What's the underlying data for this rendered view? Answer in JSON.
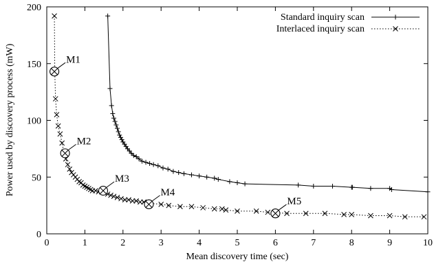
{
  "chart_data": {
    "type": "line",
    "title": "",
    "xlabel": "Mean discovery time (sec)",
    "ylabel": "Power used by discovery process (mW)",
    "xlim": [
      0,
      10
    ],
    "ylim": [
      0,
      200
    ],
    "xticks": [
      0,
      1,
      2,
      3,
      4,
      5,
      6,
      7,
      8,
      9,
      10
    ],
    "yticks": [
      0,
      50,
      100,
      150,
      200
    ],
    "legend_position": "top-right",
    "grid": false,
    "series": [
      {
        "name": "Standard inquiry scan",
        "line_style": "solid",
        "marker": "plus",
        "x": [
          1.6,
          1.66,
          1.7,
          1.73,
          1.76,
          1.79,
          1.82,
          1.85,
          1.88,
          1.91,
          1.94,
          1.97,
          2.0,
          2.04,
          2.08,
          2.12,
          2.17,
          2.22,
          2.28,
          2.35,
          2.42,
          2.5,
          2.6,
          2.7,
          2.8,
          2.92,
          3.05,
          3.18,
          3.32,
          3.46,
          3.6,
          3.8,
          4.0,
          4.2,
          4.4,
          4.5,
          4.8,
          5.0,
          5.2,
          6.6,
          7.0,
          7.5,
          8.0,
          8.02,
          8.5,
          9.0,
          9.05,
          10.0
        ],
        "y": [
          192,
          128,
          113,
          106,
          102,
          99,
          96,
          93,
          90,
          87,
          85,
          83,
          81,
          79,
          77,
          75,
          73,
          71,
          69,
          68,
          66,
          64,
          63,
          62,
          61,
          60,
          58,
          57,
          55,
          54,
          53,
          52,
          51,
          50,
          49,
          48,
          46,
          45,
          44,
          43,
          42,
          42,
          41,
          41,
          40,
          40,
          39,
          37
        ]
      },
      {
        "name": "Interlaced inquiry scan",
        "line_style": "dotted",
        "marker": "x",
        "x": [
          0.2,
          0.21,
          0.23,
          0.26,
          0.3,
          0.35,
          0.4,
          0.45,
          0.5,
          0.55,
          0.6,
          0.65,
          0.7,
          0.75,
          0.8,
          0.85,
          0.9,
          0.95,
          1.0,
          1.05,
          1.1,
          1.15,
          1.2,
          1.28,
          1.36,
          1.44,
          1.52,
          1.6,
          1.68,
          1.76,
          1.85,
          1.95,
          2.05,
          2.15,
          2.25,
          2.35,
          2.45,
          2.55,
          2.68,
          3.0,
          3.2,
          3.5,
          3.8,
          4.1,
          4.4,
          4.6,
          4.7,
          5.0,
          5.5,
          5.8,
          6.3,
          6.8,
          7.3,
          7.8,
          8.0,
          8.5,
          9.0,
          9.4,
          9.9
        ],
        "y": [
          192,
          143,
          119,
          105,
          95,
          88,
          80,
          72,
          66,
          61,
          57,
          54,
          52,
          50,
          48,
          46,
          45,
          43,
          42,
          41,
          40,
          39,
          38,
          38,
          37,
          37,
          36,
          35,
          34,
          33,
          32,
          31,
          30,
          30,
          29,
          29,
          28,
          28,
          27,
          26,
          25,
          24,
          24,
          23,
          22,
          22,
          21,
          20,
          20,
          19,
          18,
          18,
          18,
          17,
          17,
          16,
          16,
          15,
          15
        ]
      }
    ],
    "annotations": [
      {
        "label": "M1",
        "x": 0.2,
        "y": 143
      },
      {
        "label": "M2",
        "x": 0.48,
        "y": 71
      },
      {
        "label": "M3",
        "x": 1.48,
        "y": 38
      },
      {
        "label": "M4",
        "x": 2.68,
        "y": 26
      },
      {
        "label": "M5",
        "x": 6.0,
        "y": 18
      }
    ]
  }
}
